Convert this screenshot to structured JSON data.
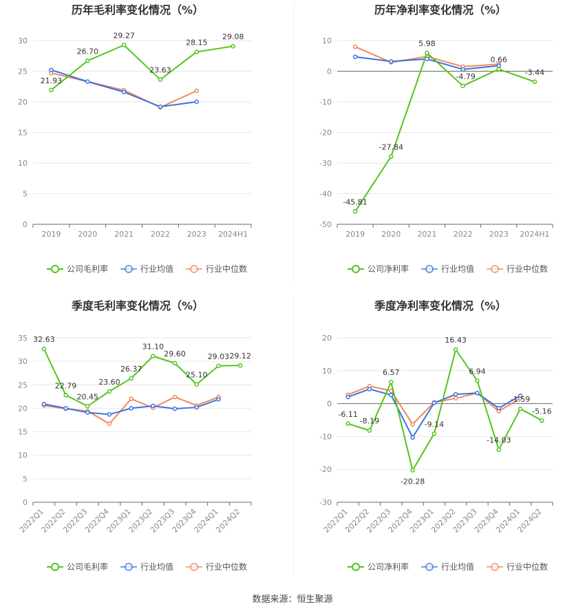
{
  "footer": {
    "source": "数据来源：恒生聚源"
  },
  "chart_data": [
    {
      "type": "line",
      "title": "历年毛利率变化情况（%）",
      "categories": [
        "2019",
        "2020",
        "2021",
        "2022",
        "2023",
        "2024H1"
      ],
      "ylim": [
        0,
        30
      ],
      "yticks": [
        0,
        5,
        10,
        15,
        20,
        25,
        30
      ],
      "xlabel": "",
      "ylabel": "",
      "grid": true,
      "legend_position": "bottom",
      "series": [
        {
          "name": "公司毛利率",
          "color": "#52c41a",
          "labeled": true,
          "values": [
            21.93,
            26.7,
            29.27,
            23.63,
            28.15,
            29.08
          ],
          "labels": [
            "21.93",
            "26.70",
            "29.27",
            "23.63",
            "28.15",
            "29.08"
          ]
        },
        {
          "name": "行业均值",
          "color": "#3a72e0",
          "labeled": false,
          "values": [
            25.2,
            23.3,
            21.6,
            19.2,
            20.0,
            null
          ]
        },
        {
          "name": "行业中位数",
          "color": "#f0865f",
          "labeled": false,
          "values": [
            24.7,
            23.3,
            21.9,
            19.1,
            21.8,
            null
          ]
        }
      ]
    },
    {
      "type": "line",
      "title": "历年净利率变化情况（%）",
      "categories": [
        "2019",
        "2020",
        "2021",
        "2022",
        "2023",
        "2024H1"
      ],
      "ylim": [
        -50,
        10
      ],
      "yticks": [
        -50,
        -40,
        -30,
        -20,
        -10,
        0,
        10
      ],
      "xlabel": "",
      "ylabel": "",
      "grid": true,
      "legend_position": "bottom",
      "series": [
        {
          "name": "公司净利率",
          "color": "#52c41a",
          "labeled": true,
          "values": [
            -45.81,
            -27.84,
            5.98,
            -4.79,
            0.66,
            -3.44
          ],
          "labels": [
            "-45.81",
            "-27.84",
            "5.98",
            "-4.79",
            "0.66",
            "-3.44"
          ]
        },
        {
          "name": "行业均值",
          "color": "#3a72e0",
          "labeled": false,
          "values": [
            4.7,
            3.2,
            4.0,
            0.6,
            1.8,
            null
          ]
        },
        {
          "name": "行业中位数",
          "color": "#f0865f",
          "labeled": false,
          "values": [
            8.0,
            2.9,
            4.8,
            1.5,
            2.3,
            null
          ]
        }
      ]
    },
    {
      "type": "line",
      "title": "季度毛利率变化情况（%）",
      "categories": [
        "2022Q1",
        "2022Q2",
        "2022Q3",
        "2022Q4",
        "2023Q1",
        "2023Q2",
        "2023Q3",
        "2023Q4",
        "2024Q1",
        "2024Q2"
      ],
      "ylim": [
        0,
        35
      ],
      "yticks": [
        0,
        5,
        10,
        15,
        20,
        25,
        30,
        35
      ],
      "xlabel": "",
      "ylabel": "",
      "grid": true,
      "legend_position": "bottom",
      "series": [
        {
          "name": "公司毛利率",
          "color": "#52c41a",
          "labeled": true,
          "values": [
            32.63,
            22.79,
            20.45,
            23.6,
            26.37,
            31.1,
            29.6,
            25.1,
            29.03,
            29.12
          ],
          "labels": [
            "32.63",
            "22.79",
            "20.45",
            "23.60",
            "26.37",
            "31.10",
            "29.60",
            "25.10",
            "29.03",
            "29.12"
          ]
        },
        {
          "name": "行业均值",
          "color": "#3a72e0",
          "labeled": false,
          "values": [
            20.9,
            20.0,
            19.1,
            18.7,
            20.0,
            20.5,
            19.9,
            20.2,
            21.9,
            null
          ]
        },
        {
          "name": "行业中位数",
          "color": "#f0865f",
          "labeled": false,
          "values": [
            20.6,
            19.9,
            19.4,
            16.7,
            22.0,
            20.1,
            22.4,
            20.6,
            22.4,
            null
          ]
        }
      ]
    },
    {
      "type": "line",
      "title": "季度净利率变化情况（%）",
      "categories": [
        "2022Q1",
        "2022Q2",
        "2022Q3",
        "2022Q4",
        "2023Q1",
        "2023Q2",
        "2023Q3",
        "2023Q4",
        "2024Q1",
        "2024Q2"
      ],
      "ylim": [
        -30,
        20
      ],
      "yticks": [
        -30,
        -20,
        -10,
        0,
        10,
        20
      ],
      "xlabel": "",
      "ylabel": "",
      "grid": true,
      "legend_position": "bottom",
      "series": [
        {
          "name": "公司净利率",
          "color": "#52c41a",
          "labeled": true,
          "values": [
            -6.11,
            -8.19,
            6.57,
            -20.28,
            -9.14,
            16.43,
            6.94,
            -14.03,
            -1.59,
            -5.16
          ],
          "labels": [
            "-6.11",
            "-8.19",
            "6.57",
            "-20.28",
            "-9.14",
            "16.43",
            "6.94",
            "-14.03",
            "-1.59",
            "-5.16"
          ]
        },
        {
          "name": "行业均值",
          "color": "#3a72e0",
          "labeled": false,
          "values": [
            2.0,
            4.4,
            2.6,
            -10.3,
            0.2,
            2.8,
            3.2,
            -1.4,
            2.4,
            null
          ]
        },
        {
          "name": "行业中位数",
          "color": "#f0865f",
          "labeled": false,
          "values": [
            2.7,
            5.3,
            3.9,
            -6.3,
            0.4,
            1.6,
            3.2,
            -2.3,
            1.6,
            null
          ]
        }
      ]
    }
  ]
}
